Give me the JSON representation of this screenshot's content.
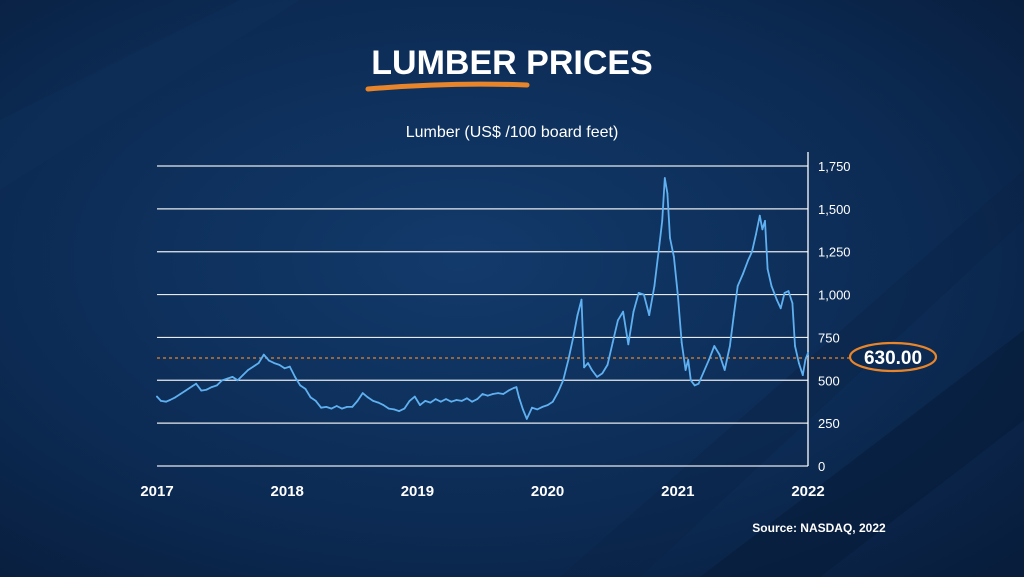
{
  "header": {
    "title": "LUMBER PRICES",
    "underline_color": "#e8852a"
  },
  "source": "Source: NASDAQ, 2022",
  "chart_data": {
    "type": "line",
    "title": "Lumber (US$ /100 board feet)",
    "xlabel": "",
    "ylabel": "",
    "xlim": [
      2017.0,
      2022.0
    ],
    "ylim": [
      0,
      1750
    ],
    "x_ticks": [
      {
        "value": 2017,
        "label": "2017"
      },
      {
        "value": 2018,
        "label": "2018"
      },
      {
        "value": 2019,
        "label": "2019"
      },
      {
        "value": 2020,
        "label": "2020"
      },
      {
        "value": 2021,
        "label": "2021"
      },
      {
        "value": 2022,
        "label": "2022"
      }
    ],
    "y_ticks": [
      {
        "value": 1750,
        "label": "1,750"
      },
      {
        "value": 1500,
        "label": "1,500"
      },
      {
        "value": 1250,
        "label": "1,250"
      },
      {
        "value": 1000,
        "label": "1,000"
      },
      {
        "value": 750,
        "label": "750"
      },
      {
        "value": 500,
        "label": "500"
      },
      {
        "value": 250,
        "label": "250"
      },
      {
        "value": 0,
        "label": "0"
      }
    ],
    "grid": true,
    "y_axis_side": "right",
    "reference_line": {
      "value": 630,
      "label": "630.00",
      "color": "#e8852a"
    },
    "series": [
      {
        "color": "#5fb0f0",
        "points": [
          [
            2017.0,
            405
          ],
          [
            2017.03,
            380
          ],
          [
            2017.07,
            375
          ],
          [
            2017.1,
            385
          ],
          [
            2017.14,
            400
          ],
          [
            2017.18,
            420
          ],
          [
            2017.22,
            440
          ],
          [
            2017.27,
            465
          ],
          [
            2017.3,
            480
          ],
          [
            2017.34,
            440
          ],
          [
            2017.38,
            445
          ],
          [
            2017.42,
            460
          ],
          [
            2017.46,
            470
          ],
          [
            2017.5,
            500
          ],
          [
            2017.54,
            510
          ],
          [
            2017.58,
            520
          ],
          [
            2017.62,
            500
          ],
          [
            2017.66,
            530
          ],
          [
            2017.7,
            560
          ],
          [
            2017.74,
            580
          ],
          [
            2017.78,
            600
          ],
          [
            2017.82,
            650
          ],
          [
            2017.86,
            615
          ],
          [
            2017.9,
            600
          ],
          [
            2017.94,
            590
          ],
          [
            2017.98,
            570
          ],
          [
            2018.02,
            580
          ],
          [
            2018.06,
            520
          ],
          [
            2018.1,
            470
          ],
          [
            2018.14,
            450
          ],
          [
            2018.18,
            400
          ],
          [
            2018.22,
            380
          ],
          [
            2018.26,
            340
          ],
          [
            2018.3,
            345
          ],
          [
            2018.34,
            335
          ],
          [
            2018.38,
            350
          ],
          [
            2018.42,
            335
          ],
          [
            2018.46,
            345
          ],
          [
            2018.5,
            345
          ],
          [
            2018.54,
            380
          ],
          [
            2018.58,
            425
          ],
          [
            2018.62,
            400
          ],
          [
            2018.66,
            380
          ],
          [
            2018.7,
            370
          ],
          [
            2018.74,
            355
          ],
          [
            2018.78,
            335
          ],
          [
            2018.82,
            330
          ],
          [
            2018.86,
            320
          ],
          [
            2018.9,
            335
          ],
          [
            2018.94,
            380
          ],
          [
            2018.98,
            405
          ],
          [
            2019.02,
            355
          ],
          [
            2019.06,
            380
          ],
          [
            2019.1,
            370
          ],
          [
            2019.14,
            390
          ],
          [
            2019.18,
            375
          ],
          [
            2019.22,
            390
          ],
          [
            2019.26,
            375
          ],
          [
            2019.3,
            385
          ],
          [
            2019.34,
            380
          ],
          [
            2019.38,
            395
          ],
          [
            2019.42,
            375
          ],
          [
            2019.46,
            390
          ],
          [
            2019.5,
            420
          ],
          [
            2019.54,
            410
          ],
          [
            2019.58,
            420
          ],
          [
            2019.62,
            425
          ],
          [
            2019.66,
            420
          ],
          [
            2019.7,
            440
          ],
          [
            2019.74,
            455
          ],
          [
            2019.76,
            460
          ],
          [
            2019.78,
            400
          ],
          [
            2019.81,
            330
          ],
          [
            2019.84,
            275
          ],
          [
            2019.88,
            340
          ],
          [
            2019.92,
            330
          ],
          [
            2019.96,
            345
          ],
          [
            2020.0,
            355
          ],
          [
            2020.04,
            375
          ],
          [
            2020.08,
            430
          ],
          [
            2020.12,
            500
          ],
          [
            2020.16,
            620
          ],
          [
            2020.2,
            760
          ],
          [
            2020.23,
            880
          ],
          [
            2020.26,
            970
          ],
          [
            2020.28,
            575
          ],
          [
            2020.31,
            600
          ],
          [
            2020.34,
            560
          ],
          [
            2020.38,
            520
          ],
          [
            2020.42,
            540
          ],
          [
            2020.46,
            590
          ],
          [
            2020.5,
            720
          ],
          [
            2020.54,
            850
          ],
          [
            2020.58,
            900
          ],
          [
            2020.62,
            710
          ],
          [
            2020.66,
            900
          ],
          [
            2020.7,
            1010
          ],
          [
            2020.74,
            1000
          ],
          [
            2020.78,
            880
          ],
          [
            2020.82,
            1050
          ],
          [
            2020.86,
            1300
          ],
          [
            2020.88,
            1430
          ],
          [
            2020.9,
            1680
          ],
          [
            2020.92,
            1590
          ],
          [
            2020.94,
            1330
          ],
          [
            2020.97,
            1220
          ],
          [
            2021.0,
            1000
          ],
          [
            2021.03,
            720
          ],
          [
            2021.06,
            560
          ],
          [
            2021.08,
            620
          ],
          [
            2021.1,
            500
          ],
          [
            2021.13,
            470
          ],
          [
            2021.16,
            480
          ],
          [
            2021.2,
            550
          ],
          [
            2021.24,
            620
          ],
          [
            2021.28,
            700
          ],
          [
            2021.32,
            650
          ],
          [
            2021.36,
            560
          ],
          [
            2021.4,
            700
          ],
          [
            2021.43,
            880
          ],
          [
            2021.46,
            1050
          ],
          [
            2021.5,
            1120
          ],
          [
            2021.54,
            1200
          ],
          [
            2021.57,
            1250
          ],
          [
            2021.6,
            1350
          ],
          [
            2021.63,
            1460
          ],
          [
            2021.65,
            1380
          ],
          [
            2021.67,
            1430
          ],
          [
            2021.69,
            1150
          ],
          [
            2021.72,
            1050
          ],
          [
            2021.76,
            970
          ],
          [
            2021.79,
            920
          ],
          [
            2021.82,
            1010
          ],
          [
            2021.85,
            1020
          ],
          [
            2021.88,
            950
          ],
          [
            2021.9,
            700
          ],
          [
            2021.93,
            600
          ],
          [
            2021.96,
            530
          ],
          [
            2021.98,
            620
          ],
          [
            2022.0,
            660
          ]
        ]
      }
    ]
  }
}
